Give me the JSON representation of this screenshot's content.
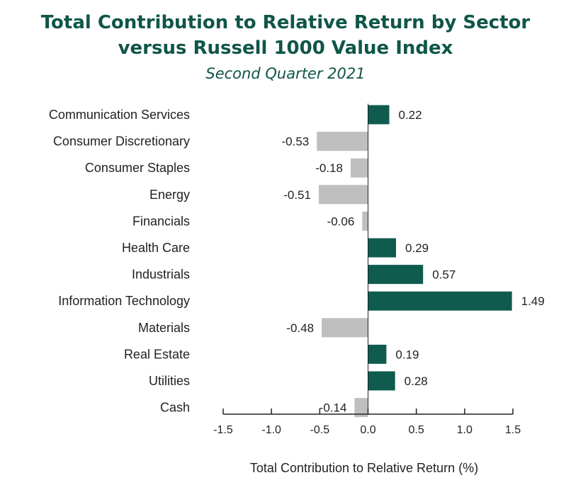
{
  "chart_data": {
    "type": "bar",
    "orientation": "horizontal",
    "title_line1": "Total Contribution to Relative Return by Sector",
    "title_line2": "versus Russell 1000 Value Index",
    "subtitle": "Second Quarter 2021",
    "xlabel": "Total Contribution to Relative Return (%)",
    "ylabel": "",
    "xlim": [
      -1.5,
      1.5
    ],
    "xticks": [
      -1.5,
      -1.0,
      -0.5,
      0.0,
      0.5,
      1.0,
      1.5
    ],
    "xtick_labels": [
      "-1.5",
      "-1.0",
      "-0.5",
      "0.0",
      "0.5",
      "1.0",
      "1.5"
    ],
    "categories": [
      "Communication Services",
      "Consumer Discretionary",
      "Consumer Staples",
      "Energy",
      "Financials",
      "Health Care",
      "Industrials",
      "Information Technology",
      "Materials",
      "Real Estate",
      "Utilities",
      "Cash"
    ],
    "values": [
      0.22,
      -0.53,
      -0.18,
      -0.51,
      -0.06,
      0.29,
      0.57,
      1.49,
      -0.48,
      0.19,
      0.28,
      -0.14
    ],
    "value_labels": [
      "0.22",
      "-0.53",
      "-0.18",
      "-0.51",
      "-0.06",
      "0.29",
      "0.57",
      "1.49",
      "-0.48",
      "0.19",
      "0.28",
      "-0.14"
    ],
    "colors": {
      "positive": "#0f5c4f",
      "negative": "#bfbfbf",
      "title": "#0f5648"
    },
    "grid": false
  }
}
